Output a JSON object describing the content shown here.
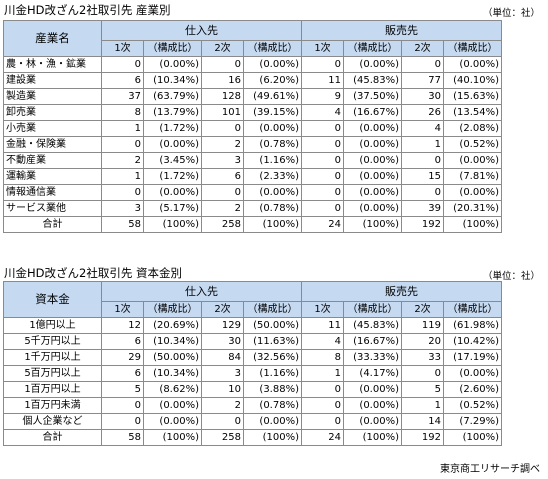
{
  "table1": {
    "title": "川金HD改ざん2社取引先 産業別",
    "unit": "（単位：社）",
    "row_header": "産業名",
    "group_labels": [
      "仕入先",
      "販売先"
    ],
    "sub_headers": [
      "1次",
      "（構成比）",
      "2次",
      "（構成比）",
      "1次",
      "（構成比）",
      "2次",
      "（構成比）"
    ],
    "rows": [
      {
        "label": "農・林・漁・鉱業",
        "cells": [
          "0",
          "(0.00%)",
          "0",
          "(0.00%)",
          "0",
          "(0.00%)",
          "0",
          "(0.00%)"
        ]
      },
      {
        "label": "建設業",
        "cells": [
          "6",
          "(10.34%)",
          "16",
          "(6.20%)",
          "11",
          "(45.83%)",
          "77",
          "(40.10%)"
        ]
      },
      {
        "label": "製造業",
        "cells": [
          "37",
          "(63.79%)",
          "128",
          "(49.61%)",
          "9",
          "(37.50%)",
          "30",
          "(15.63%)"
        ]
      },
      {
        "label": "卸売業",
        "cells": [
          "8",
          "(13.79%)",
          "101",
          "(39.15%)",
          "4",
          "(16.67%)",
          "26",
          "(13.54%)"
        ]
      },
      {
        "label": "小売業",
        "cells": [
          "1",
          "(1.72%)",
          "0",
          "(0.00%)",
          "0",
          "(0.00%)",
          "4",
          "(2.08%)"
        ]
      },
      {
        "label": "金融・保険業",
        "cells": [
          "0",
          "(0.00%)",
          "2",
          "(0.78%)",
          "0",
          "(0.00%)",
          "1",
          "(0.52%)"
        ]
      },
      {
        "label": "不動産業",
        "cells": [
          "2",
          "(3.45%)",
          "3",
          "(1.16%)",
          "0",
          "(0.00%)",
          "0",
          "(0.00%)"
        ]
      },
      {
        "label": "運輸業",
        "cells": [
          "1",
          "(1.72%)",
          "6",
          "(2.33%)",
          "0",
          "(0.00%)",
          "15",
          "(7.81%)"
        ]
      },
      {
        "label": "情報通信業",
        "cells": [
          "0",
          "(0.00%)",
          "0",
          "(0.00%)",
          "0",
          "(0.00%)",
          "0",
          "(0.00%)"
        ]
      },
      {
        "label": "サービス業他",
        "cells": [
          "3",
          "(5.17%)",
          "2",
          "(0.78%)",
          "0",
          "(0.00%)",
          "39",
          "(20.31%)"
        ]
      }
    ],
    "total": {
      "label": "合計",
      "cells": [
        "58",
        "(100%)",
        "258",
        "(100%)",
        "24",
        "(100%)",
        "192",
        "(100%)"
      ]
    }
  },
  "table2": {
    "title": "川金HD改ざん2社取引先 資本金別",
    "unit": "（単位：社）",
    "row_header": "資本金",
    "group_labels": [
      "仕入先",
      "販売先"
    ],
    "sub_headers": [
      "1次",
      "（構成比）",
      "2次",
      "（構成比）",
      "1次",
      "（構成比）",
      "2次",
      "（構成比）"
    ],
    "rows": [
      {
        "label": "1億円以上",
        "cells": [
          "12",
          "(20.69%)",
          "129",
          "(50.00%)",
          "11",
          "(45.83%)",
          "119",
          "(61.98%)"
        ]
      },
      {
        "label": "5千万円以上",
        "cells": [
          "6",
          "(10.34%)",
          "30",
          "(11.63%)",
          "4",
          "(16.67%)",
          "20",
          "(10.42%)"
        ]
      },
      {
        "label": "1千万円以上",
        "cells": [
          "29",
          "(50.00%)",
          "84",
          "(32.56%)",
          "8",
          "(33.33%)",
          "33",
          "(17.19%)"
        ]
      },
      {
        "label": "5百万円以上",
        "cells": [
          "6",
          "(10.34%)",
          "3",
          "(1.16%)",
          "1",
          "(4.17%)",
          "0",
          "(0.00%)"
        ]
      },
      {
        "label": "1百万円以上",
        "cells": [
          "5",
          "(8.62%)",
          "10",
          "(3.88%)",
          "0",
          "(0.00%)",
          "5",
          "(2.60%)"
        ]
      },
      {
        "label": "1百万円未満",
        "cells": [
          "0",
          "(0.00%)",
          "2",
          "(0.78%)",
          "0",
          "(0.00%)",
          "1",
          "(0.52%)"
        ]
      },
      {
        "label": "個人企業など",
        "cells": [
          "0",
          "(0.00%)",
          "0",
          "(0.00%)",
          "0",
          "(0.00%)",
          "14",
          "(7.29%)"
        ]
      }
    ],
    "total": {
      "label": "合計",
      "cells": [
        "58",
        "(100%)",
        "258",
        "(100%)",
        "24",
        "(100%)",
        "192",
        "(100%)"
      ]
    }
  },
  "credit": "東京商工リサーチ調べ"
}
